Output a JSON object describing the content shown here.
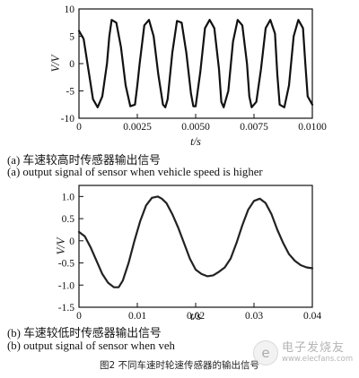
{
  "chart_data": [
    {
      "type": "line",
      "xlabel": "t/s",
      "ylabel": "V/V",
      "xlim": [
        0,
        0.01
      ],
      "ylim": [
        -10,
        10
      ],
      "xticks": [
        "0",
        "0.0025",
        "0.0050",
        "0.0075",
        "0.0100"
      ],
      "yticks": [
        "10",
        "5",
        "0",
        "-5",
        "-10"
      ],
      "grid": false,
      "series": [
        {
          "x": [
            0.0,
            0.0002,
            0.0004,
            0.0006,
            0.0008,
            0.001,
            0.0012,
            0.0013,
            0.0014,
            0.0016,
            0.0018,
            0.002,
            0.0022,
            0.0024,
            0.0025,
            0.0026,
            0.0028,
            0.003,
            0.0032,
            0.0034,
            0.0036,
            0.0037,
            0.0038,
            0.004,
            0.0042,
            0.0044,
            0.0046,
            0.0048,
            0.0049,
            0.005,
            0.0052,
            0.0054,
            0.0056,
            0.0058,
            0.006,
            0.0061,
            0.0062,
            0.0064,
            0.0066,
            0.0068,
            0.007,
            0.0072,
            0.0073,
            0.0074,
            0.0076,
            0.0078,
            0.008,
            0.0082,
            0.0084,
            0.0085,
            0.0086,
            0.0088,
            0.009,
            0.0092,
            0.0094,
            0.0096,
            0.0097,
            0.0098,
            0.01
          ],
          "y": [
            6,
            4.5,
            -1,
            -6.5,
            -8,
            -6,
            0,
            5,
            8,
            7.5,
            3,
            -4,
            -7.8,
            -7.5,
            -4,
            0,
            7,
            8,
            5,
            -2,
            -7.5,
            -8,
            -6.5,
            2,
            7.8,
            7.5,
            2,
            -5.5,
            -7.8,
            -7.8,
            -1.5,
            6.5,
            8,
            6.5,
            -1,
            -7,
            -8,
            -5,
            4,
            8,
            7,
            0,
            -6,
            -8,
            -7,
            -1,
            6.5,
            8,
            5.5,
            -2,
            -7.5,
            -8,
            -4,
            5,
            8,
            6.5,
            0,
            -6,
            -7.5
          ]
        }
      ]
    },
    {
      "type": "line",
      "xlabel": "t/s",
      "ylabel": "V/V",
      "xlim": [
        0,
        0.04
      ],
      "ylim": [
        -1.5,
        1.25
      ],
      "xticks": [
        "0",
        "0.01",
        "0.02",
        "0.03",
        "0.04"
      ],
      "yticks": [
        "1.0",
        "0.5",
        "0",
        "-0.5",
        "-1.0",
        "-1.5"
      ],
      "grid": false,
      "series": [
        {
          "x": [
            0.0,
            0.001,
            0.002,
            0.003,
            0.004,
            0.005,
            0.006,
            0.0068,
            0.0075,
            0.0085,
            0.0095,
            0.0105,
            0.0115,
            0.0125,
            0.0135,
            0.0142,
            0.015,
            0.016,
            0.017,
            0.018,
            0.019,
            0.02,
            0.021,
            0.022,
            0.023,
            0.024,
            0.025,
            0.026,
            0.027,
            0.028,
            0.029,
            0.03,
            0.031,
            0.032,
            0.033,
            0.034,
            0.035,
            0.036,
            0.037,
            0.038,
            0.039,
            0.04
          ],
          "y": [
            0.2,
            0.1,
            -0.15,
            -0.45,
            -0.75,
            -0.95,
            -1.05,
            -1.05,
            -0.9,
            -0.5,
            0.0,
            0.45,
            0.8,
            0.97,
            1.0,
            0.95,
            0.85,
            0.6,
            0.3,
            -0.05,
            -0.4,
            -0.65,
            -0.75,
            -0.8,
            -0.78,
            -0.7,
            -0.6,
            -0.4,
            -0.05,
            0.35,
            0.7,
            0.9,
            0.95,
            0.85,
            0.6,
            0.25,
            -0.05,
            -0.3,
            -0.45,
            -0.55,
            -0.6,
            -0.62
          ]
        }
      ]
    }
  ],
  "captions": {
    "a_zh": "(a) 车速较高时传感器输出信号",
    "a_en": "(a) output signal of sensor when vehicle speed is higher",
    "b_zh": "(b) 车速较低时传感器输出信号",
    "b_en": "(b) output signal of sensor when veh"
  },
  "figure_title": "图2   不同车速时轮速传感器的输出信号",
  "watermark": {
    "name": "电子发烧友",
    "url": "www.elecfans.com",
    "icon": "e-logo-icon"
  }
}
